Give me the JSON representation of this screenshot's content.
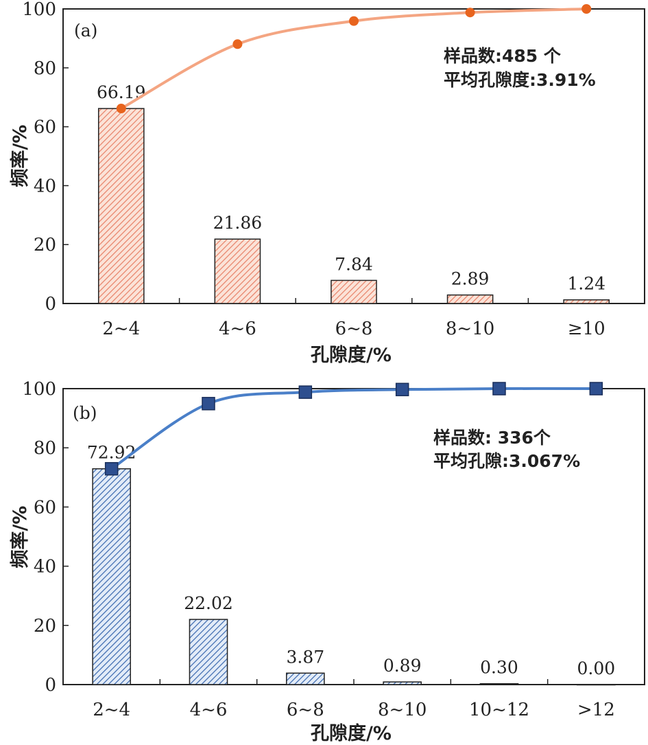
{
  "chart_data": [
    {
      "type": "bar",
      "panel_label": "(a)",
      "categories": [
        "2~4",
        "4~6",
        "6~8",
        "8~10",
        "≥10"
      ],
      "values": [
        66.19,
        21.86,
        7.84,
        2.89,
        1.24
      ],
      "value_labels": [
        "66.19",
        "21.86",
        "7.84",
        "2.89",
        "1.24"
      ],
      "cumulative": [
        66.19,
        88.05,
        95.89,
        98.78,
        100.0
      ],
      "xlabel": "孔隙度/%",
      "ylabel": "频率/%",
      "ylim": [
        0,
        100
      ],
      "yticks": [
        "0",
        "20",
        "40",
        "60",
        "80",
        "100"
      ],
      "annotation": [
        "样品数:485 个",
        "平均孔隙度:3.91%"
      ],
      "colors": {
        "bar": "#f4a582",
        "bar_hatch": "#e8836a",
        "line": "#f4a582",
        "marker": "#e8641e"
      },
      "marker": "circle"
    },
    {
      "type": "bar",
      "panel_label": "(b)",
      "categories": [
        "2~4",
        "4~6",
        "6~8",
        "8~10",
        "10~12",
        ">12"
      ],
      "values": [
        72.92,
        22.02,
        3.87,
        0.89,
        0.3,
        0.0
      ],
      "value_labels": [
        "72.92",
        "22.02",
        "3.87",
        "0.89",
        "0.30",
        "0.00"
      ],
      "cumulative": [
        72.92,
        94.94,
        98.81,
        99.7,
        100.0,
        100.0
      ],
      "xlabel": "孔隙度/%",
      "ylabel": "频率/%",
      "ylim": [
        0,
        100
      ],
      "yticks": [
        "0",
        "20",
        "40",
        "60",
        "80",
        "100"
      ],
      "annotation": [
        "样品数: 336个",
        "平均孔隙:3.067%"
      ],
      "colors": {
        "bar": "#8fb0dc",
        "bar_hatch": "#3e6bb0",
        "line": "#4a7fc8",
        "marker": "#2e4f8f"
      },
      "marker": "square"
    }
  ]
}
